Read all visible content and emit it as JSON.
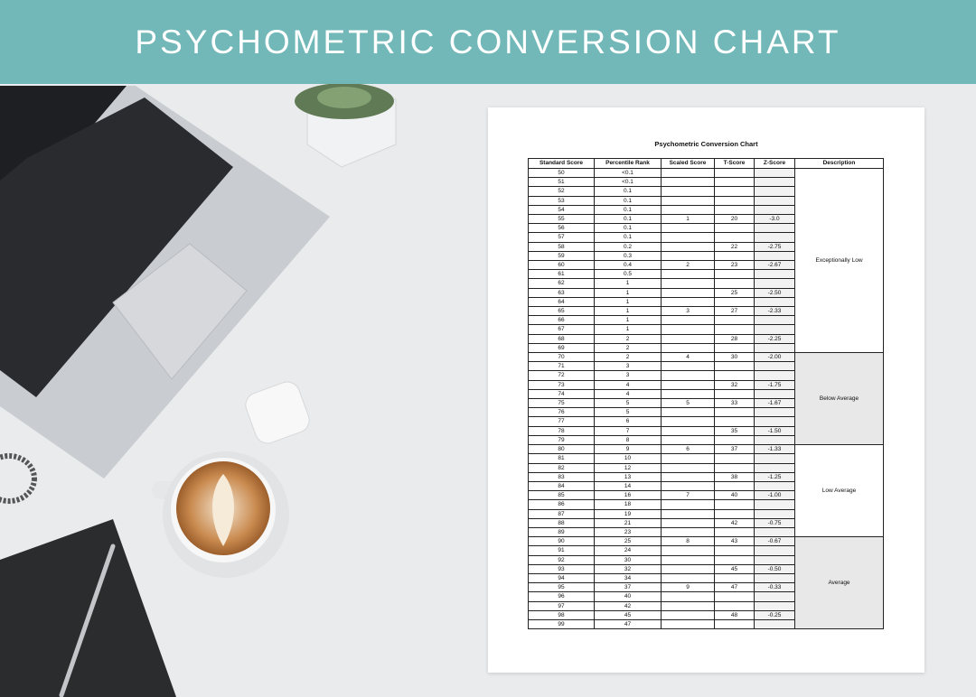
{
  "header": {
    "title": "PSYCHOMETRIC CONVERSION CHART"
  },
  "document": {
    "title": "Psychometric Conversion Chart"
  },
  "table": {
    "headers": [
      "Standard Score",
      "Percentile Rank",
      "Scaled Score",
      "T-Score",
      "Z-Score",
      "Description"
    ],
    "groups": [
      {
        "description": "Exceptionally Low",
        "rows": [
          [
            "50",
            "<0.1",
            null,
            null,
            null
          ],
          [
            "51",
            "<0.1",
            null,
            null,
            null
          ],
          [
            "52",
            "0.1",
            null,
            null,
            null
          ],
          [
            "53",
            "0.1",
            null,
            null,
            null
          ],
          [
            "54",
            "0.1",
            null,
            null,
            null
          ],
          [
            "55",
            "0.1",
            "1",
            "20",
            "-3.0"
          ],
          [
            "56",
            "0.1",
            null,
            null,
            null
          ],
          [
            "57",
            "0.1",
            null,
            null,
            null
          ],
          [
            "58",
            "0.2",
            null,
            "22",
            "-2.75"
          ],
          [
            "59",
            "0.3",
            null,
            null,
            null
          ],
          [
            "60",
            "0.4",
            "2",
            "23",
            "-2.67"
          ],
          [
            "61",
            "0.5",
            null,
            null,
            null
          ],
          [
            "62",
            "1",
            null,
            null,
            null
          ],
          [
            "63",
            "1",
            null,
            "25",
            "-2.50"
          ],
          [
            "64",
            "1",
            null,
            null,
            null
          ],
          [
            "65",
            "1",
            "3",
            "27",
            "-2.33"
          ],
          [
            "66",
            "1",
            null,
            null,
            null
          ],
          [
            "67",
            "1",
            null,
            null,
            null
          ],
          [
            "68",
            "2",
            null,
            "28",
            "-2.25"
          ],
          [
            "69",
            "2",
            null,
            null,
            null
          ]
        ]
      },
      {
        "description": "Below Average",
        "rows": [
          [
            "70",
            "2",
            "4",
            "30",
            "-2.00"
          ],
          [
            "71",
            "3",
            null,
            null,
            null
          ],
          [
            "72",
            "3",
            null,
            null,
            null
          ],
          [
            "73",
            "4",
            null,
            "32",
            "-1.75"
          ],
          [
            "74",
            "4",
            null,
            null,
            null
          ],
          [
            "75",
            "5",
            "5",
            "33",
            "-1.67"
          ],
          [
            "76",
            "5",
            null,
            null,
            null
          ],
          [
            "77",
            "6",
            null,
            null,
            null
          ],
          [
            "78",
            "7",
            null,
            "35",
            "-1.50"
          ],
          [
            "79",
            "8",
            null,
            null,
            null
          ]
        ]
      },
      {
        "description": "Low Average",
        "rows": [
          [
            "80",
            "9",
            "6",
            "37",
            "-1.33"
          ],
          [
            "81",
            "10",
            null,
            null,
            null
          ],
          [
            "82",
            "12",
            null,
            null,
            null
          ],
          [
            "83",
            "13",
            null,
            "38",
            "-1.25"
          ],
          [
            "84",
            "14",
            null,
            null,
            null
          ],
          [
            "85",
            "16",
            "7",
            "40",
            "-1.00"
          ],
          [
            "86",
            "18",
            null,
            null,
            null
          ],
          [
            "87",
            "19",
            null,
            null,
            null
          ],
          [
            "88",
            "21",
            null,
            "42",
            "-0.75"
          ],
          [
            "89",
            "23",
            null,
            null,
            null
          ]
        ]
      },
      {
        "description": "Average",
        "rows": [
          [
            "90",
            "25",
            "8",
            "43",
            "-0.67"
          ],
          [
            "91",
            "24",
            null,
            null,
            null
          ],
          [
            "92",
            "30",
            null,
            null,
            null
          ],
          [
            "93",
            "32",
            null,
            "45",
            "-0.50"
          ],
          [
            "94",
            "34",
            null,
            null,
            null
          ],
          [
            "95",
            "37",
            "9",
            "47",
            "-0.33"
          ],
          [
            "96",
            "40",
            null,
            null,
            null
          ],
          [
            "97",
            "42",
            null,
            null,
            null
          ],
          [
            "98",
            "45",
            null,
            "48",
            "-0.25"
          ],
          [
            "99",
            "47",
            null,
            null,
            null
          ]
        ]
      }
    ]
  }
}
